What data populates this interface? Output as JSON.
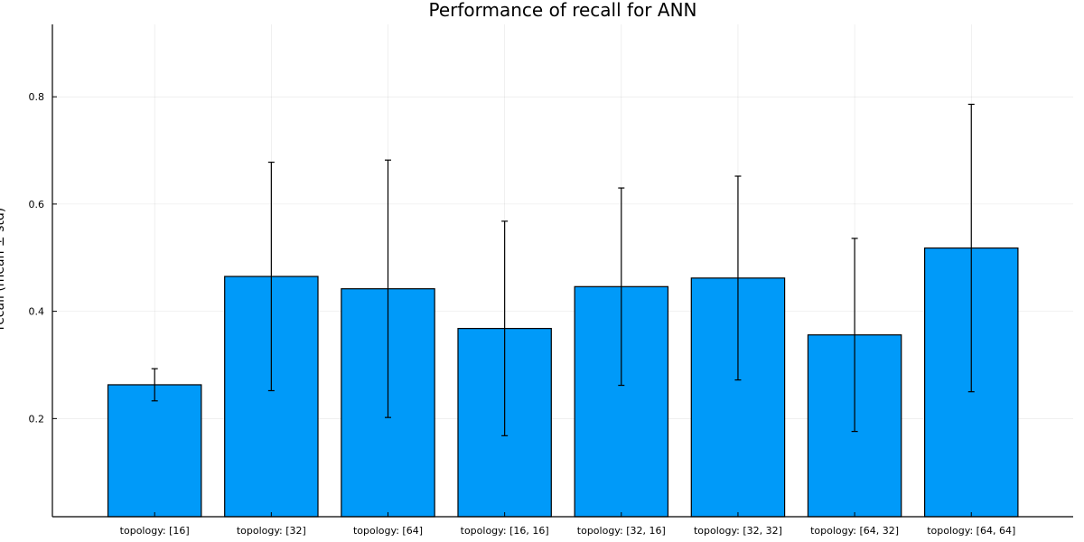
{
  "chart_data": {
    "type": "bar",
    "title": "Performance of recall for ANN",
    "xlabel": "",
    "ylabel": "recall (mean ± std)",
    "categories": [
      "topology: [16]",
      "topology: [32]",
      "topology: [64]",
      "topology: [16, 16]",
      "topology: [32, 16]",
      "topology: [32, 32]",
      "topology: [64, 32]",
      "topology: [64, 64]"
    ],
    "values": [
      0.263,
      0.465,
      0.442,
      0.368,
      0.446,
      0.462,
      0.356,
      0.518
    ],
    "std": [
      0.03,
      0.213,
      0.24,
      0.2,
      0.184,
      0.19,
      0.18,
      0.268
    ],
    "ylim": [
      0.017,
      0.935
    ],
    "yticks": [
      0.2,
      0.4,
      0.6,
      0.8
    ],
    "ytick_labels": [
      "0.2",
      "0.4",
      "0.6",
      "0.8"
    ],
    "grid": true,
    "bar_color": "#009AF9",
    "errorbar_color": "#000000"
  }
}
